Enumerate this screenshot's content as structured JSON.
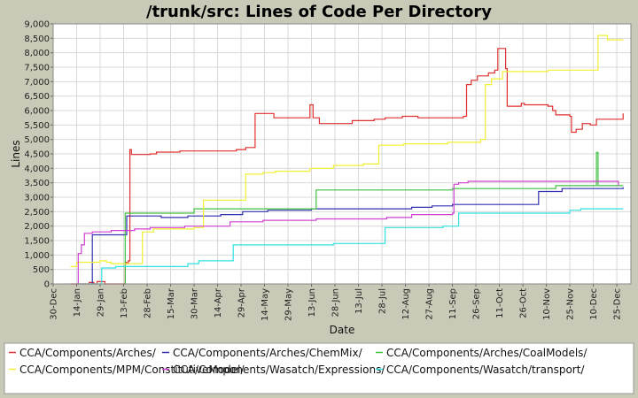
{
  "chart_data": {
    "type": "line",
    "title": "/trunk/src: Lines of Code Per Directory",
    "xlabel": "Date",
    "ylabel": "Lines",
    "ylim": [
      0,
      9000
    ],
    "yticks": [
      0,
      500,
      1000,
      1500,
      2000,
      2500,
      3000,
      3500,
      4000,
      4500,
      5000,
      5500,
      6000,
      6500,
      7000,
      7500,
      8000,
      8500,
      9000
    ],
    "ytick_labels": [
      "0",
      "500",
      "1,000",
      "1,500",
      "2,000",
      "2,500",
      "3,000",
      "3,500",
      "4,000",
      "4,500",
      "5,000",
      "5,500",
      "6,000",
      "6,500",
      "7,000",
      "7,500",
      "8,000",
      "8,500",
      "9,000"
    ],
    "xlim": [
      "2007-12-30",
      "2009-01-02"
    ],
    "xticks": [
      "2007-12-30",
      "2008-01-14",
      "2008-01-29",
      "2008-02-13",
      "2008-02-28",
      "2008-03-14",
      "2008-03-29",
      "2008-04-13",
      "2008-04-28",
      "2008-05-13",
      "2008-05-28",
      "2008-06-12",
      "2008-06-27",
      "2008-07-12",
      "2008-07-27",
      "2008-08-11",
      "2008-08-26",
      "2008-09-10",
      "2008-09-25",
      "2008-10-10",
      "2008-10-25",
      "2008-11-09",
      "2008-11-24",
      "2008-12-09",
      "2008-12-24"
    ],
    "xtick_labels": [
      "30-Dec",
      "14-Jan",
      "29-Jan",
      "13-Feb",
      "28-Feb",
      "15-Mar",
      "30-Mar",
      "14-Apr",
      "29-Apr",
      "14-May",
      "29-May",
      "13-Jun",
      "28-Jun",
      "13-Jul",
      "28-Jul",
      "12-Aug",
      "27-Aug",
      "11-Sep",
      "26-Sep",
      "11-Oct",
      "26-Oct",
      "10-Nov",
      "25-Nov",
      "10-Dec",
      "25-Dec"
    ],
    "grid": true,
    "legend_position": "bottom",
    "series": [
      {
        "name": "CCA/Components/Arches/",
        "color": "#e03030",
        "points": [
          [
            "2008-01-10",
            0
          ],
          [
            "2008-01-22",
            50
          ],
          [
            "2008-01-25",
            0
          ],
          [
            "2008-01-27",
            80
          ],
          [
            "2008-02-01",
            0
          ],
          [
            "2008-02-14",
            750
          ],
          [
            "2008-02-15",
            700
          ],
          [
            "2008-02-16",
            800
          ],
          [
            "2008-02-17",
            4650
          ],
          [
            "2008-02-18",
            4480
          ],
          [
            "2008-03-01",
            4500
          ],
          [
            "2008-03-05",
            4560
          ],
          [
            "2008-03-20",
            4600
          ],
          [
            "2008-04-25",
            4650
          ],
          [
            "2008-05-01",
            4720
          ],
          [
            "2008-05-07",
            5900
          ],
          [
            "2008-05-19",
            5750
          ],
          [
            "2008-06-11",
            6200
          ],
          [
            "2008-06-13",
            5750
          ],
          [
            "2008-06-17",
            5550
          ],
          [
            "2008-07-08",
            5650
          ],
          [
            "2008-07-22",
            5700
          ],
          [
            "2008-07-29",
            5750
          ],
          [
            "2008-08-09",
            5800
          ],
          [
            "2008-08-19",
            5750
          ],
          [
            "2008-09-17",
            5800
          ],
          [
            "2008-09-19",
            6900
          ],
          [
            "2008-09-22",
            7050
          ],
          [
            "2008-09-26",
            7200
          ],
          [
            "2008-10-03",
            7300
          ],
          [
            "2008-10-07",
            7400
          ],
          [
            "2008-10-09",
            8150
          ],
          [
            "2008-10-14",
            7450
          ],
          [
            "2008-10-15",
            6150
          ],
          [
            "2008-10-24",
            6250
          ],
          [
            "2008-10-26",
            6200
          ],
          [
            "2008-11-10",
            6150
          ],
          [
            "2008-11-13",
            6000
          ],
          [
            "2008-11-15",
            5850
          ],
          [
            "2008-11-19",
            5850
          ],
          [
            "2008-11-24",
            5800
          ],
          [
            "2008-11-25",
            5250
          ],
          [
            "2008-11-28",
            5350
          ],
          [
            "2008-12-02",
            5550
          ],
          [
            "2008-12-07",
            5500
          ],
          [
            "2008-12-11",
            5700
          ],
          [
            "2008-12-28",
            5900
          ]
        ]
      },
      {
        "name": "CCA/Components/Arches/ChemMix/",
        "color": "#3030b0",
        "points": [
          [
            "2008-01-23",
            0
          ],
          [
            "2008-01-24",
            1700
          ],
          [
            "2008-02-05",
            1700
          ],
          [
            "2008-02-15",
            2350
          ],
          [
            "2008-03-08",
            2300
          ],
          [
            "2008-03-25",
            2350
          ],
          [
            "2008-04-15",
            2400
          ],
          [
            "2008-04-29",
            2500
          ],
          [
            "2008-05-15",
            2550
          ],
          [
            "2008-06-12",
            2600
          ],
          [
            "2008-08-15",
            2650
          ],
          [
            "2008-08-28",
            2700
          ],
          [
            "2008-09-10",
            2750
          ],
          [
            "2008-11-04",
            3200
          ],
          [
            "2008-11-19",
            3300
          ],
          [
            "2008-12-28",
            3350
          ]
        ]
      },
      {
        "name": "CCA/Components/Arches/CoalModels/",
        "color": "#40c040",
        "points": [
          [
            "2008-02-13",
            0
          ],
          [
            "2008-02-14",
            2450
          ],
          [
            "2008-03-20",
            2450
          ],
          [
            "2008-03-29",
            2600
          ],
          [
            "2008-06-15",
            3250
          ],
          [
            "2008-09-10",
            3300
          ],
          [
            "2008-11-15",
            3400
          ],
          [
            "2008-12-10",
            3400
          ],
          [
            "2008-12-11",
            4550
          ],
          [
            "2008-12-12",
            3400
          ],
          [
            "2008-12-28",
            3400
          ]
        ]
      },
      {
        "name": "CCA/Components/MPM/ConstitutiveModel/",
        "color": "#f0f030",
        "points": [
          [
            "2008-01-10",
            600
          ],
          [
            "2008-01-14",
            750
          ],
          [
            "2008-01-29",
            800
          ],
          [
            "2008-02-02",
            750
          ],
          [
            "2008-02-05",
            700
          ],
          [
            "2008-02-25",
            1800
          ],
          [
            "2008-03-03",
            1900
          ],
          [
            "2008-03-29",
            1950
          ],
          [
            "2008-04-04",
            2900
          ],
          [
            "2008-04-27",
            2900
          ],
          [
            "2008-05-01",
            3800
          ],
          [
            "2008-05-12",
            3850
          ],
          [
            "2008-05-20",
            3900
          ],
          [
            "2008-06-11",
            4000
          ],
          [
            "2008-06-26",
            4100
          ],
          [
            "2008-07-15",
            4150
          ],
          [
            "2008-07-25",
            4800
          ],
          [
            "2008-08-10",
            4850
          ],
          [
            "2008-09-07",
            4900
          ],
          [
            "2008-09-28",
            5000
          ],
          [
            "2008-10-01",
            6900
          ],
          [
            "2008-10-05",
            7100
          ],
          [
            "2008-10-12",
            7350
          ],
          [
            "2008-11-10",
            7400
          ],
          [
            "2008-12-12",
            8600
          ],
          [
            "2008-12-18",
            8450
          ],
          [
            "2008-12-28",
            8450
          ]
        ]
      },
      {
        "name": "CCA/Components/Wasatch/Expressions/",
        "color": "#d040d0",
        "points": [
          [
            "2008-01-14",
            0
          ],
          [
            "2008-01-15",
            1050
          ],
          [
            "2008-01-17",
            1350
          ],
          [
            "2008-01-19",
            1750
          ],
          [
            "2008-01-24",
            1800
          ],
          [
            "2008-02-05",
            1850
          ],
          [
            "2008-02-20",
            1900
          ],
          [
            "2008-03-01",
            1950
          ],
          [
            "2008-03-23",
            2000
          ],
          [
            "2008-04-21",
            2150
          ],
          [
            "2008-05-12",
            2200
          ],
          [
            "2008-06-15",
            2250
          ],
          [
            "2008-07-30",
            2300
          ],
          [
            "2008-08-15",
            2400
          ],
          [
            "2008-09-10",
            2450
          ],
          [
            "2008-09-11",
            3450
          ],
          [
            "2008-09-14",
            3500
          ],
          [
            "2008-09-20",
            3550
          ],
          [
            "2008-10-15",
            3550
          ],
          [
            "2008-12-01",
            3550
          ],
          [
            "2008-12-20",
            3550
          ],
          [
            "2008-12-25",
            3400
          ]
        ]
      },
      {
        "name": "CCA/Components/Wasatch/transport/",
        "color": "#30e0e0",
        "points": [
          [
            "2008-01-15",
            0
          ],
          [
            "2008-01-30",
            550
          ],
          [
            "2008-02-08",
            600
          ],
          [
            "2008-03-25",
            700
          ],
          [
            "2008-04-01",
            800
          ],
          [
            "2008-04-23",
            1350
          ],
          [
            "2008-06-26",
            1400
          ],
          [
            "2008-07-29",
            1950
          ],
          [
            "2008-09-04",
            2000
          ],
          [
            "2008-09-14",
            2450
          ],
          [
            "2008-10-15",
            2450
          ],
          [
            "2008-11-24",
            2550
          ],
          [
            "2008-12-01",
            2600
          ],
          [
            "2008-12-28",
            2600
          ]
        ]
      }
    ]
  }
}
